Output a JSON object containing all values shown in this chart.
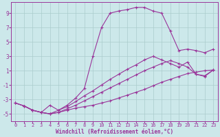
{
  "bg_color": "#cce8ea",
  "grid_color": "#aacccc",
  "line_color": "#993399",
  "xlim": [
    -0.5,
    23.5
  ],
  "ylim": [
    -6,
    10.5
  ],
  "yticks": [
    -5,
    -3,
    -1,
    1,
    3,
    5,
    7,
    9
  ],
  "xticks": [
    0,
    1,
    2,
    3,
    4,
    5,
    6,
    7,
    8,
    9,
    10,
    11,
    12,
    13,
    14,
    15,
    16,
    17,
    18,
    19,
    20,
    21,
    22,
    23
  ],
  "xlabel": "Windchill (Refroidissement éolien,°C)",
  "series": [
    {
      "x": [
        0,
        1,
        2,
        3,
        4,
        5,
        6,
        7,
        8,
        9,
        10,
        11,
        12,
        13,
        14,
        15,
        16,
        17,
        18,
        19,
        20,
        21,
        22,
        23
      ],
      "y": [
        -3.5,
        -3.9,
        -4.5,
        -4.8,
        -5.0,
        -4.8,
        -4.5,
        -4.2,
        -4.0,
        -3.8,
        -3.5,
        -3.2,
        -2.8,
        -2.4,
        -2.0,
        -1.6,
        -1.1,
        -0.6,
        -0.2,
        0.2,
        0.6,
        0.8,
        1.0,
        1.1
      ]
    },
    {
      "x": [
        0,
        1,
        2,
        3,
        4,
        5,
        6,
        7,
        8,
        9,
        10,
        11,
        12,
        13,
        14,
        15,
        16,
        17,
        18,
        19,
        20,
        21,
        22,
        23
      ],
      "y": [
        -3.5,
        -3.9,
        -4.5,
        -4.8,
        -5.0,
        -4.8,
        -4.3,
        -3.8,
        -3.2,
        -2.6,
        -2.0,
        -1.4,
        -0.8,
        -0.2,
        0.4,
        1.0,
        1.5,
        2.0,
        2.4,
        2.0,
        1.5,
        0.5,
        0.3,
        1.1
      ]
    },
    {
      "x": [
        0,
        1,
        2,
        3,
        4,
        5,
        6,
        7,
        8,
        9,
        10,
        11,
        12,
        13,
        14,
        15,
        16,
        17,
        18,
        19,
        20,
        21,
        22,
        23
      ],
      "y": [
        -3.5,
        -3.9,
        -4.5,
        -4.8,
        -5.0,
        -4.5,
        -4.0,
        -3.3,
        -2.5,
        -1.8,
        -1.0,
        -0.2,
        0.5,
        1.2,
        1.8,
        2.5,
        3.0,
        2.5,
        2.0,
        1.5,
        2.2,
        0.5,
        0.2,
        1.1
      ]
    },
    {
      "x": [
        1,
        2,
        3,
        4,
        5,
        6,
        7,
        8,
        9,
        10,
        11,
        12,
        13,
        14,
        15,
        16,
        17,
        18,
        19,
        20,
        21,
        22,
        23
      ],
      "y": [
        -3.9,
        -4.5,
        -4.8,
        -3.8,
        -4.5,
        -3.8,
        -2.8,
        -1.5,
        3.0,
        7.0,
        9.0,
        9.3,
        9.5,
        9.8,
        9.8,
        9.3,
        9.0,
        6.5,
        3.8,
        4.0,
        3.8,
        3.5,
        4.0
      ]
    }
  ]
}
